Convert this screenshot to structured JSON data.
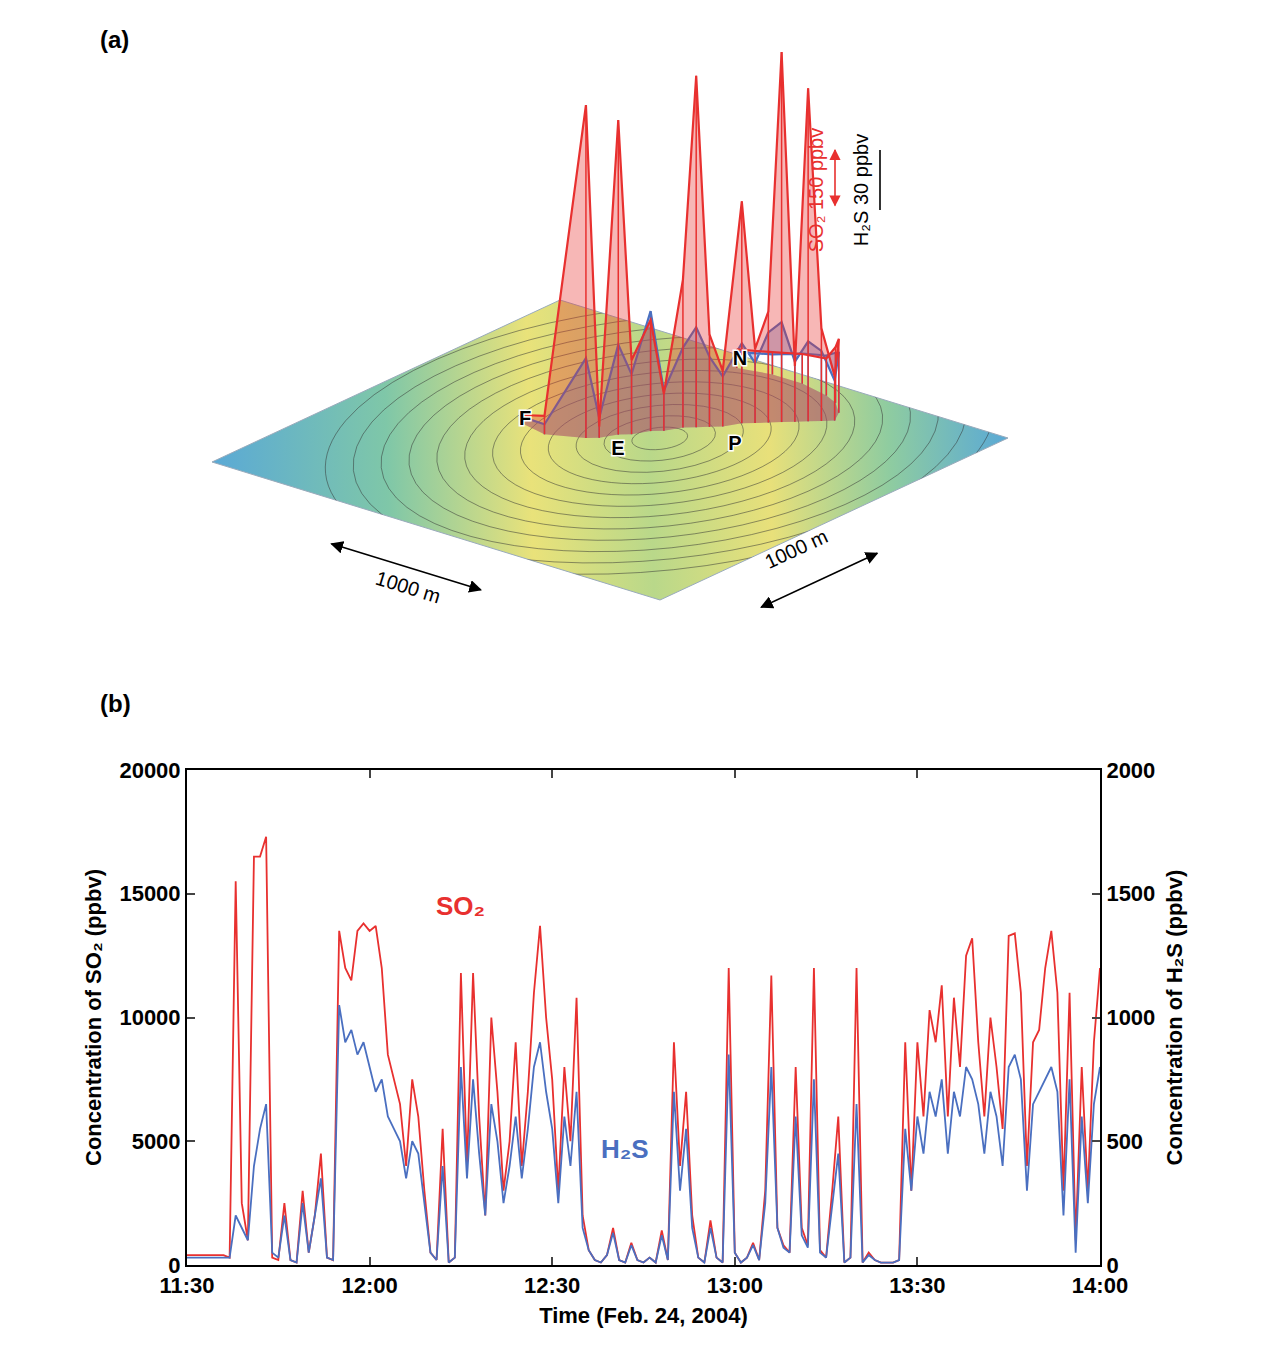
{
  "panel_a": {
    "label": "(a)",
    "sites": [
      {
        "label": "F",
        "x_m": 941,
        "y_m": 1487
      },
      {
        "label": "E",
        "x_m": 1575,
        "y_m": 1472
      },
      {
        "label": "P",
        "x_m": 2004,
        "y_m": 1929
      },
      {
        "label": "N",
        "x_m": 1287,
        "y_m": 2894
      }
    ],
    "scale_bars": [
      {
        "value": 1000,
        "label": "1000 m"
      },
      {
        "value": 1000,
        "label": "1000 m"
      }
    ],
    "scales": [
      {
        "label": "SO₂ 150 ppbv",
        "value": 150,
        "color": "#e8302f"
      },
      {
        "label": "H₂S 30 ppbv",
        "value": 30,
        "color": "#000000"
      }
    ],
    "track": {
      "x_m": [
        900,
        1100,
        1300,
        1350,
        1400,
        1450,
        1500,
        1550,
        1600,
        1650,
        1700,
        1750,
        1800,
        1850,
        1900,
        1950,
        2000,
        2050,
        2100,
        2150,
        2100,
        2000,
        1900,
        1700,
        1500,
        1300
      ],
      "y_m": [
        1500,
        1450,
        1550,
        1600,
        1700,
        1750,
        1850,
        1900,
        2000,
        2050,
        2100,
        2150,
        2250,
        2300,
        2350,
        2400,
        2450,
        2500,
        2550,
        2600,
        2700,
        2800,
        2850,
        2900,
        2900,
        2850
      ],
      "series": [
        {
          "name": "SO₂",
          "color": "#e8302f",
          "values": [
            20,
            50,
            900,
            30,
            850,
            200,
            300,
            100,
            400,
            950,
            250,
            150,
            600,
            200,
            300,
            1000,
            150,
            900,
            250,
            120,
            200,
            150,
            100,
            80,
            60,
            50
          ]
        },
        {
          "name": "H₂S",
          "color": "#4a6fc0",
          "values": [
            3,
            5,
            40,
            10,
            45,
            30,
            60,
            20,
            40,
            50,
            35,
            25,
            40,
            30,
            45,
            50,
            30,
            40,
            35,
            20,
            30,
            25,
            20,
            15,
            10,
            8
          ]
        }
      ]
    }
  },
  "chart_data": {
    "type": "line",
    "panel_label": "(b)",
    "x_label": "Time (Feb. 24, 2004)",
    "y_label": "Concentration of SO₂ (ppbv)",
    "y2_label": "Concentration of H₂S (ppbv)",
    "grid": false,
    "xlim": [
      "2004-02-24 11:30",
      "2004-02-24 14:00"
    ],
    "xticks": [
      {
        "value": "2004-02-24 11:30",
        "label": "11:30"
      },
      {
        "value": "2004-02-24 12:00",
        "label": "12:00"
      },
      {
        "value": "2004-02-24 12:30",
        "label": "12:30"
      },
      {
        "value": "2004-02-24 13:00",
        "label": "13:00"
      },
      {
        "value": "2004-02-24 13:30",
        "label": "13:30"
      },
      {
        "value": "2004-02-24 14:00",
        "label": "14:00"
      }
    ],
    "ylim": [
      0,
      20000
    ],
    "yticks": [
      0,
      5000,
      10000,
      15000,
      20000
    ],
    "y2lim": [
      0,
      2000
    ],
    "y2ticks": [
      0,
      500,
      1000,
      1500,
      2000
    ],
    "x": [
      "2004-02-24 11:30",
      "2004-02-24 11:31",
      "2004-02-24 11:32",
      "2004-02-24 11:33",
      "2004-02-24 11:34",
      "2004-02-24 11:35",
      "2004-02-24 11:36",
      "2004-02-24 11:37",
      "2004-02-24 11:38",
      "2004-02-24 11:39",
      "2004-02-24 11:40",
      "2004-02-24 11:41",
      "2004-02-24 11:42",
      "2004-02-24 11:43",
      "2004-02-24 11:44",
      "2004-02-24 11:45",
      "2004-02-24 11:46",
      "2004-02-24 11:47",
      "2004-02-24 11:48",
      "2004-02-24 11:49",
      "2004-02-24 11:50",
      "2004-02-24 11:51",
      "2004-02-24 11:52",
      "2004-02-24 11:53",
      "2004-02-24 11:54",
      "2004-02-24 11:55",
      "2004-02-24 11:56",
      "2004-02-24 11:57",
      "2004-02-24 11:58",
      "2004-02-24 11:59",
      "2004-02-24 12:00",
      "2004-02-24 12:01",
      "2004-02-24 12:02",
      "2004-02-24 12:03",
      "2004-02-24 12:04",
      "2004-02-24 12:05",
      "2004-02-24 12:06",
      "2004-02-24 12:07",
      "2004-02-24 12:08",
      "2004-02-24 12:09",
      "2004-02-24 12:10",
      "2004-02-24 12:11",
      "2004-02-24 12:12",
      "2004-02-24 12:13",
      "2004-02-24 12:14",
      "2004-02-24 12:15",
      "2004-02-24 12:16",
      "2004-02-24 12:17",
      "2004-02-24 12:18",
      "2004-02-24 12:19",
      "2004-02-24 12:20",
      "2004-02-24 12:21",
      "2004-02-24 12:22",
      "2004-02-24 12:23",
      "2004-02-24 12:24",
      "2004-02-24 12:25",
      "2004-02-24 12:26",
      "2004-02-24 12:27",
      "2004-02-24 12:28",
      "2004-02-24 12:29",
      "2004-02-24 12:30",
      "2004-02-24 12:31",
      "2004-02-24 12:32",
      "2004-02-24 12:33",
      "2004-02-24 12:34",
      "2004-02-24 12:35",
      "2004-02-24 12:36",
      "2004-02-24 12:37",
      "2004-02-24 12:38",
      "2004-02-24 12:39",
      "2004-02-24 12:40",
      "2004-02-24 12:41",
      "2004-02-24 12:42",
      "2004-02-24 12:43",
      "2004-02-24 12:44",
      "2004-02-24 12:45",
      "2004-02-24 12:46",
      "2004-02-24 12:47",
      "2004-02-24 12:48",
      "2004-02-24 12:49",
      "2004-02-24 12:50",
      "2004-02-24 12:51",
      "2004-02-24 12:52",
      "2004-02-24 12:53",
      "2004-02-24 12:54",
      "2004-02-24 12:55",
      "2004-02-24 12:56",
      "2004-02-24 12:57",
      "2004-02-24 12:58",
      "2004-02-24 12:59",
      "2004-02-24 13:00",
      "2004-02-24 13:01",
      "2004-02-24 13:02",
      "2004-02-24 13:03",
      "2004-02-24 13:04",
      "2004-02-24 13:05",
      "2004-02-24 13:06",
      "2004-02-24 13:07",
      "2004-02-24 13:08",
      "2004-02-24 13:09",
      "2004-02-24 13:10",
      "2004-02-24 13:11",
      "2004-02-24 13:12",
      "2004-02-24 13:13",
      "2004-02-24 13:14",
      "2004-02-24 13:15",
      "2004-02-24 13:16",
      "2004-02-24 13:17",
      "2004-02-24 13:18",
      "2004-02-24 13:19",
      "2004-02-24 13:20",
      "2004-02-24 13:21",
      "2004-02-24 13:22",
      "2004-02-24 13:23",
      "2004-02-24 13:24",
      "2004-02-24 13:25",
      "2004-02-24 13:26",
      "2004-02-24 13:27",
      "2004-02-24 13:28",
      "2004-02-24 13:29",
      "2004-02-24 13:30",
      "2004-02-24 13:31",
      "2004-02-24 13:32",
      "2004-02-24 13:33",
      "2004-02-24 13:34",
      "2004-02-24 13:35",
      "2004-02-24 13:36",
      "2004-02-24 13:37",
      "2004-02-24 13:38",
      "2004-02-24 13:39",
      "2004-02-24 13:40",
      "2004-02-24 13:41",
      "2004-02-24 13:42",
      "2004-02-24 13:43",
      "2004-02-24 13:44",
      "2004-02-24 13:45",
      "2004-02-24 13:46",
      "2004-02-24 13:47",
      "2004-02-24 13:48",
      "2004-02-24 13:49",
      "2004-02-24 13:50",
      "2004-02-24 13:51",
      "2004-02-24 13:52",
      "2004-02-24 13:53",
      "2004-02-24 13:54",
      "2004-02-24 13:55",
      "2004-02-24 13:56",
      "2004-02-24 13:57",
      "2004-02-24 13:58",
      "2004-02-24 13:59",
      "2004-02-24 14:00"
    ],
    "series": [
      {
        "name": "H₂S",
        "color": "#4a6fc0",
        "axis": "y2",
        "values": [
          30,
          30,
          30,
          30,
          30,
          30,
          30,
          30,
          200,
          150,
          100,
          400,
          550,
          650,
          50,
          30,
          200,
          20,
          10,
          250,
          50,
          200,
          350,
          30,
          20,
          1050,
          900,
          950,
          850,
          900,
          800,
          700,
          750,
          600,
          550,
          500,
          350,
          500,
          450,
          250,
          50,
          20,
          400,
          10,
          30,
          800,
          350,
          750,
          450,
          200,
          650,
          500,
          250,
          400,
          600,
          350,
          550,
          800,
          900,
          700,
          550,
          250,
          600,
          400,
          700,
          150,
          60,
          20,
          10,
          40,
          130,
          20,
          10,
          80,
          20,
          10,
          30,
          10,
          120,
          20,
          700,
          300,
          550,
          150,
          30,
          10,
          150,
          30,
          10,
          850,
          50,
          10,
          30,
          80,
          20,
          250,
          800,
          150,
          70,
          50,
          600,
          120,
          70,
          750,
          50,
          30,
          250,
          450,
          10,
          30,
          650,
          10,
          40,
          20,
          10,
          10,
          10,
          20,
          550,
          300,
          600,
          450,
          700,
          600,
          750,
          450,
          700,
          600,
          800,
          750,
          650,
          450,
          700,
          600,
          400,
          800,
          850,
          750,
          300,
          650,
          700,
          750,
          800,
          700,
          200,
          750,
          50,
          600,
          250,
          650,
          800
        ]
      },
      {
        "name": "SO₂",
        "color": "#e8302f",
        "axis": "y",
        "values": [
          400,
          400,
          400,
          400,
          400,
          400,
          400,
          300,
          15500,
          2500,
          1000,
          16500,
          16500,
          17300,
          300,
          200,
          2500,
          200,
          100,
          3000,
          500,
          2000,
          4500,
          300,
          200,
          13500,
          12000,
          11500,
          13500,
          13800,
          13500,
          13700,
          12000,
          8500,
          7500,
          6500,
          4000,
          7500,
          6000,
          3000,
          500,
          200,
          5500,
          100,
          300,
          11800,
          4000,
          11800,
          6000,
          2000,
          10000,
          7000,
          3000,
          5000,
          9000,
          4000,
          7000,
          11000,
          13700,
          10000,
          7500,
          3000,
          8000,
          5000,
          10800,
          2000,
          600,
          200,
          100,
          400,
          1500,
          200,
          100,
          900,
          200,
          100,
          300,
          100,
          1400,
          200,
          9000,
          4000,
          7000,
          2000,
          300,
          100,
          1800,
          300,
          100,
          12000,
          500,
          100,
          300,
          900,
          200,
          3000,
          11700,
          1500,
          800,
          500,
          8000,
          1500,
          800,
          12000,
          600,
          300,
          3000,
          6000,
          100,
          300,
          12000,
          100,
          500,
          200,
          100,
          100,
          100,
          200,
          9000,
          3000,
          9000,
          6000,
          10300,
          9000,
          11300,
          6000,
          10800,
          8000,
          12500,
          13200,
          9000,
          6000,
          10000,
          8000,
          5500,
          13300,
          13400,
          11000,
          4000,
          9000,
          9500,
          12000,
          13500,
          11000,
          3000,
          11000,
          1000,
          8000,
          3000,
          9000,
          12000
        ]
      }
    ]
  }
}
